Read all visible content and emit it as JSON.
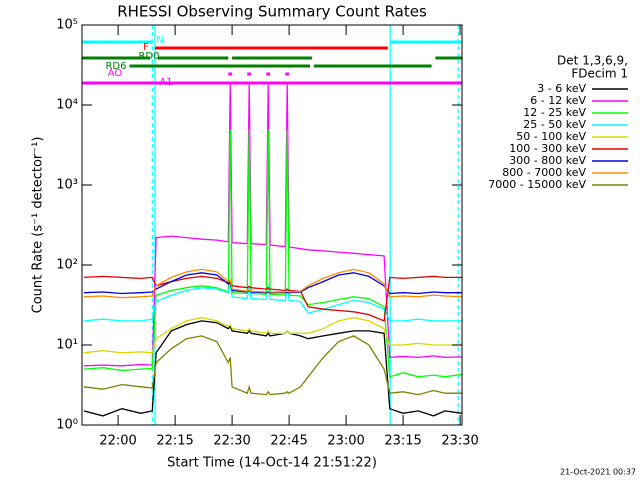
{
  "chart_data": {
    "type": "line",
    "title": "RHESSI Observing Summary Count Rates",
    "xlabel": "Start Time (14-Oct-14 21:51:22)",
    "ylabel": "Count Rate (s⁻¹ detector⁻¹)",
    "footer": "21-Oct-2021 00:37",
    "legend_title": [
      "Det 1,3,6,9,",
      "FDecim 1"
    ],
    "log_y": true,
    "xlim": [
      1310.5,
      1410.5
    ],
    "xticks": [
      {
        "value": 1320,
        "label": "22:00"
      },
      {
        "value": 1335,
        "label": "22:15"
      },
      {
        "value": 1350,
        "label": "22:30"
      },
      {
        "value": 1365,
        "label": "22:45"
      },
      {
        "value": 1380,
        "label": "23:00"
      },
      {
        "value": 1395,
        "label": "23:15"
      },
      {
        "value": 1410,
        "label": "23:30"
      }
    ],
    "ylim": [
      1,
      100000
    ],
    "yticks": [
      {
        "value": 1,
        "label": "10⁰"
      },
      {
        "value": 10,
        "label": "10¹"
      },
      {
        "value": 100,
        "label": "10²"
      },
      {
        "value": 1000,
        "label": "10³"
      },
      {
        "value": 10000,
        "label": "10⁴"
      },
      {
        "value": 100000,
        "label": "10⁵"
      }
    ],
    "x": [
      1311,
      1316,
      1321,
      1326,
      1329,
      1330,
      1334,
      1338,
      1342,
      1346,
      1349,
      1349.5,
      1350,
      1354,
      1354.5,
      1355,
      1359,
      1359.5,
      1360,
      1364,
      1364.5,
      1365,
      1368,
      1370,
      1374,
      1378,
      1382,
      1386,
      1390,
      1391.5,
      1395,
      1399,
      1403,
      1406,
      1410.5
    ],
    "series": [
      {
        "name": "3 - 6 keV",
        "color": "#000000",
        "values": [
          1.5,
          1.3,
          1.6,
          1.4,
          1.5,
          8,
          15,
          18,
          20,
          19,
          16,
          17,
          15,
          14,
          15,
          14,
          13,
          14,
          13,
          14,
          15,
          14,
          13,
          12,
          13,
          14,
          15,
          15,
          14,
          1.6,
          1.4,
          1.5,
          1.3,
          1.5,
          1.4
        ]
      },
      {
        "name": "6 - 12 keV",
        "color": "#ff00ff",
        "values": [
          5.5,
          5.6,
          5.5,
          5.7,
          5.6,
          220,
          230,
          220,
          210,
          205,
          195,
          18000,
          190,
          185,
          18000,
          185,
          180,
          18000,
          178,
          170,
          18000,
          168,
          160,
          155,
          150,
          145,
          140,
          135,
          130,
          7,
          7.2,
          7,
          7.3,
          7,
          7.1
        ]
      },
      {
        "name": "12 - 25 keV",
        "color": "#00ff00",
        "values": [
          5,
          5.2,
          4.8,
          5,
          5.1,
          42,
          48,
          52,
          55,
          52,
          46,
          5000,
          45,
          44,
          5000,
          44,
          43,
          5000,
          43,
          42,
          5000,
          42,
          41,
          32,
          34,
          37,
          40,
          38,
          30,
          4,
          4.5,
          4,
          4.2,
          4,
          4.3
        ]
      },
      {
        "name": "25 - 50 keV",
        "color": "#00ffff",
        "values": [
          20,
          21,
          20,
          20,
          21,
          35,
          42,
          48,
          52,
          50,
          45,
          60,
          40,
          38,
          55,
          38,
          37,
          55,
          37,
          36,
          50,
          36,
          35,
          25,
          28,
          32,
          36,
          34,
          28,
          20,
          20,
          21,
          20,
          20,
          20
        ]
      },
      {
        "name": "50 - 100 keV",
        "color": "#d8d800",
        "values": [
          8,
          8.5,
          8,
          8.2,
          8,
          12,
          16,
          20,
          22,
          20,
          17,
          18,
          16,
          15,
          16,
          15,
          14,
          15,
          14,
          14,
          15,
          14,
          14,
          14,
          16,
          20,
          22,
          20,
          16,
          10,
          10,
          10.5,
          10,
          10,
          10
        ]
      },
      {
        "name": "100 - 300 keV",
        "color": "#e00000",
        "values": [
          70,
          72,
          70,
          68,
          70,
          55,
          62,
          68,
          72,
          68,
          60,
          62,
          55,
          52,
          54,
          52,
          50,
          52,
          50,
          48,
          50,
          48,
          47,
          30,
          28,
          27,
          26,
          24,
          20,
          70,
          68,
          70,
          72,
          70,
          70
        ]
      },
      {
        "name": "300 - 800 keV",
        "color": "#0000e0",
        "values": [
          45,
          46,
          44,
          45,
          46,
          50,
          62,
          75,
          80,
          75,
          58,
          60,
          48,
          46,
          48,
          46,
          45,
          46,
          45,
          45,
          46,
          45,
          46,
          52,
          62,
          75,
          80,
          72,
          55,
          44,
          45,
          44,
          46,
          45,
          45
        ]
      },
      {
        "name": "800 - 7000 keV",
        "color": "#ff8c00",
        "values": [
          40,
          41,
          39,
          40,
          41,
          55,
          70,
          82,
          88,
          82,
          62,
          65,
          50,
          47,
          49,
          47,
          46,
          47,
          46,
          46,
          47,
          46,
          47,
          55,
          68,
          80,
          88,
          80,
          58,
          40,
          41,
          40,
          42,
          41,
          40
        ]
      },
      {
        "name": "7000 - 15000 keV",
        "color": "#808000",
        "values": [
          3,
          2.8,
          3.2,
          3,
          2.9,
          6,
          9,
          12,
          13,
          11,
          6,
          7,
          3,
          2.5,
          3,
          2.5,
          2.4,
          2.6,
          2.4,
          2.5,
          2.6,
          2.5,
          3,
          4,
          7,
          11,
          13,
          10,
          5,
          2.5,
          2.6,
          2.4,
          2.7,
          2.5,
          2.5
        ]
      }
    ],
    "flags": [
      {
        "name": "N",
        "color": "#00ffff",
        "segments": [
          [
            1310.5,
            1329
          ],
          [
            1391.6,
            1410.5
          ]
        ]
      },
      {
        "name": "F",
        "color": "#ff0000",
        "segments": [
          [
            1329.7,
            1391
          ]
        ]
      },
      {
        "name": "RD0",
        "color": "#008000",
        "segments": [
          [
            1310.5,
            1328.4
          ],
          [
            1330.5,
            1349
          ],
          [
            1350,
            1371
          ],
          [
            1403.5,
            1410.5
          ]
        ]
      },
      {
        "name": "RD6",
        "color": "#008000",
        "segments": [
          [
            1323,
            1370.5
          ],
          [
            1371.5,
            1402.5
          ]
        ]
      },
      {
        "name": "AO",
        "color": "#ff00ff",
        "segments": [
          [
            1349,
            1350
          ],
          [
            1354,
            1355
          ],
          [
            1359,
            1360
          ],
          [
            1364,
            1365
          ]
        ]
      },
      {
        "name": "A1",
        "color": "#ff00ff",
        "segments": [
          [
            1310.5,
            1410.5
          ]
        ]
      }
    ],
    "vlines": [
      {
        "x": 1329.7,
        "style": "solid",
        "color": "#00ffff"
      },
      {
        "x": 1391.6,
        "style": "solid",
        "color": "#00ffff"
      },
      {
        "x": 1329,
        "style": "dashed",
        "color": "#00ffff"
      },
      {
        "x": 1409.5,
        "style": "dashed",
        "color": "#00ffff"
      }
    ]
  }
}
